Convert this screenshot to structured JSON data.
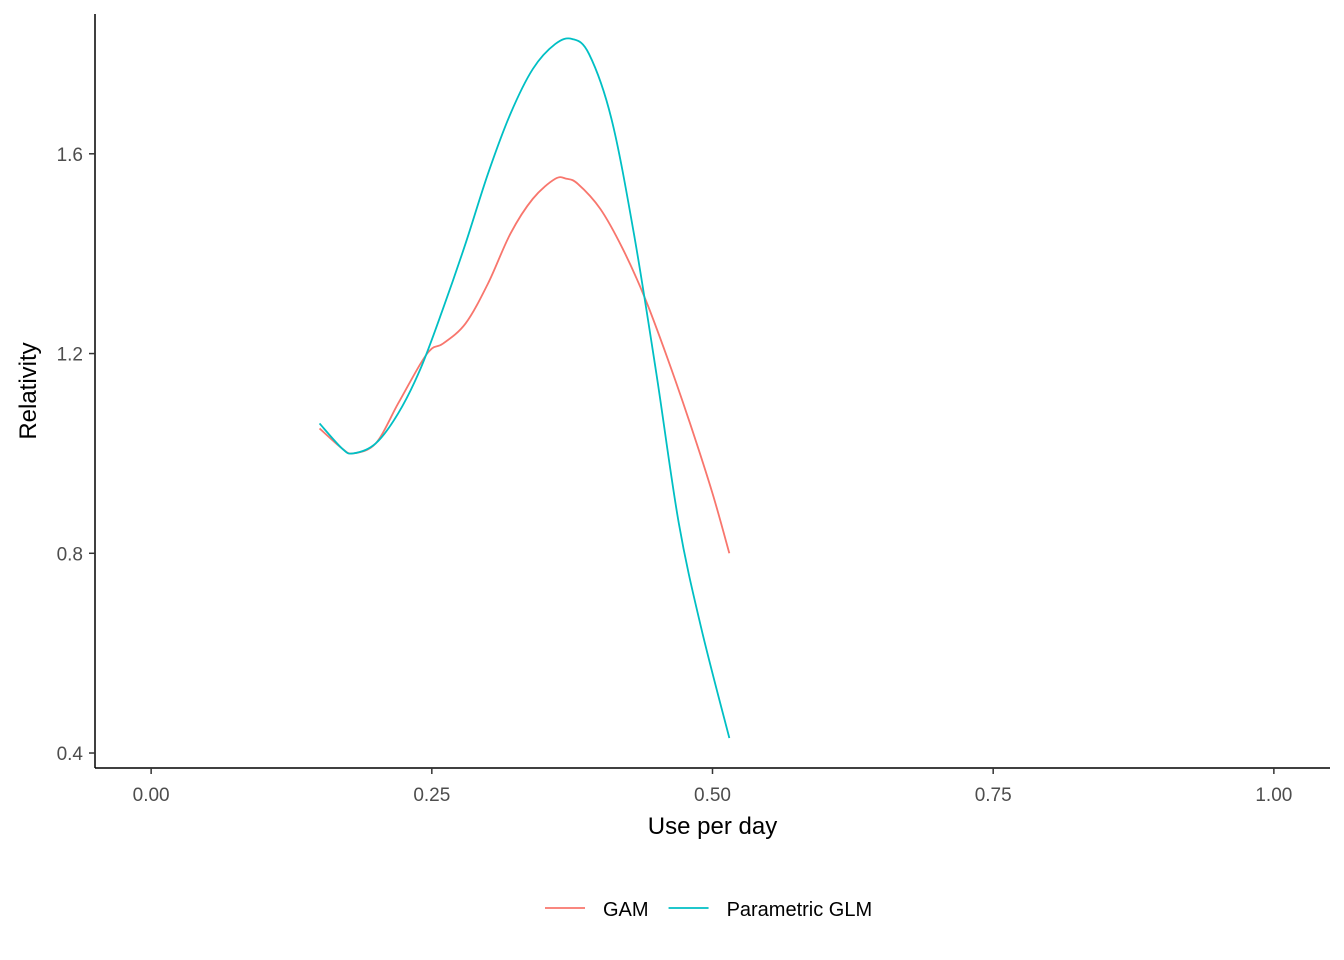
{
  "chart_data": {
    "type": "line",
    "title": "",
    "xlabel": "Use per day",
    "ylabel": "Relativity",
    "xlim": [
      -0.05,
      1.05
    ],
    "ylim": [
      0.37,
      1.88
    ],
    "x_ticks": [
      0.0,
      0.25,
      0.5,
      0.75,
      1.0
    ],
    "x_tick_labels": [
      "0.00",
      "0.25",
      "0.50",
      "0.75",
      "1.00"
    ],
    "y_ticks": [
      0.4,
      0.8,
      1.2,
      1.6
    ],
    "y_tick_labels": [
      "0.4",
      "0.8",
      "1.2",
      "1.6"
    ],
    "grid": false,
    "legend_position": "bottom",
    "series": [
      {
        "name": "GAM",
        "color": "#F8766D",
        "x": [
          0.15,
          0.17,
          0.18,
          0.2,
          0.22,
          0.24,
          0.25,
          0.26,
          0.28,
          0.3,
          0.32,
          0.34,
          0.36,
          0.37,
          0.38,
          0.4,
          0.42,
          0.44,
          0.46,
          0.48,
          0.5,
          0.515
        ],
        "y": [
          1.05,
          1.01,
          1.0,
          1.02,
          1.1,
          1.18,
          1.21,
          1.22,
          1.26,
          1.34,
          1.44,
          1.51,
          1.55,
          1.55,
          1.54,
          1.49,
          1.41,
          1.31,
          1.19,
          1.06,
          0.92,
          0.8
        ]
      },
      {
        "name": "Parametric GLM",
        "color": "#00BFC4",
        "x": [
          0.15,
          0.17,
          0.18,
          0.2,
          0.22,
          0.24,
          0.26,
          0.28,
          0.3,
          0.32,
          0.34,
          0.36,
          0.375,
          0.39,
          0.41,
          0.43,
          0.45,
          0.47,
          0.49,
          0.515
        ],
        "y": [
          1.06,
          1.01,
          1.0,
          1.02,
          1.08,
          1.17,
          1.29,
          1.42,
          1.56,
          1.68,
          1.77,
          1.82,
          1.83,
          1.8,
          1.67,
          1.44,
          1.16,
          0.86,
          0.65,
          0.43
        ]
      }
    ]
  }
}
